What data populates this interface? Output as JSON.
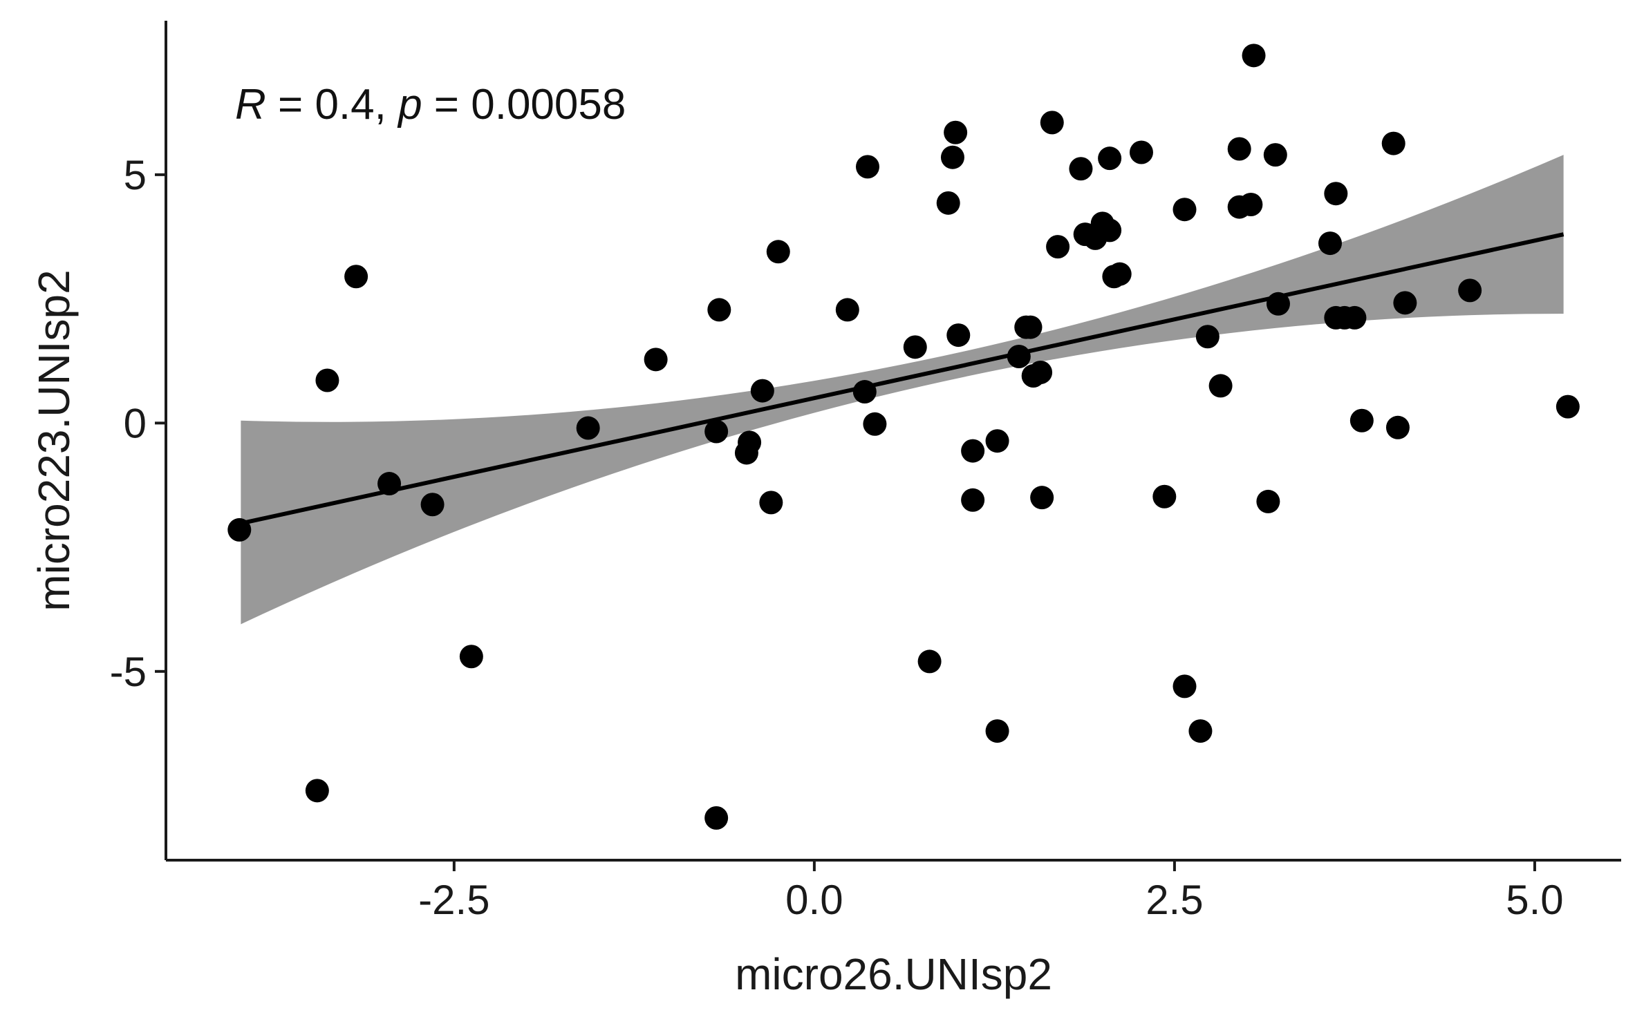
{
  "chart_data": {
    "type": "scatter",
    "xlabel": "micro26.UNIsp2",
    "ylabel": "micro223.UNIsp2",
    "xlim": [
      -4.5,
      5.6
    ],
    "ylim": [
      -8.8,
      8.1
    ],
    "xticks": [
      -2.5,
      0.0,
      2.5,
      5.0
    ],
    "xtick_labels": [
      "-2.5",
      "0.0",
      "2.5",
      "5.0"
    ],
    "yticks": [
      -5,
      0,
      5
    ],
    "ytick_labels": [
      "-5",
      "0",
      "5"
    ],
    "grid": false,
    "legend": "none",
    "annotation": {
      "r_label": "R",
      "r_text": " = 0.4, ",
      "p_label": "p",
      "p_text": " = 0.00058"
    },
    "regression": {
      "x_range": [
        -3.98,
        5.2
      ],
      "y_start": -2.02,
      "y_end": 3.8,
      "ci_lower_start": -4.05,
      "ci_upper_start": 0.05,
      "ci_lower_end": 2.2,
      "ci_upper_end": 5.4,
      "ci_lower_mid": 0.65,
      "ci_upper_mid": 1.18
    },
    "points": [
      [
        -3.99,
        -2.15
      ],
      [
        -3.38,
        0.86
      ],
      [
        -3.18,
        2.95
      ],
      [
        -2.95,
        -1.22
      ],
      [
        -2.65,
        -1.64
      ],
      [
        -2.38,
        -4.7
      ],
      [
        -3.45,
        -7.4
      ],
      [
        -1.57,
        -0.1
      ],
      [
        -1.1,
        1.28
      ],
      [
        -0.66,
        2.28
      ],
      [
        -0.68,
        -0.17
      ],
      [
        -0.45,
        -0.39
      ],
      [
        -0.47,
        -0.6
      ],
      [
        -0.36,
        0.65
      ],
      [
        -0.3,
        -1.6
      ],
      [
        -0.25,
        3.45
      ],
      [
        -0.68,
        -7.95
      ],
      [
        0.23,
        2.28
      ],
      [
        0.35,
        0.63
      ],
      [
        0.37,
        5.16
      ],
      [
        0.42,
        -0.02
      ],
      [
        0.7,
        1.53
      ],
      [
        0.8,
        -4.8
      ],
      [
        0.93,
        4.43
      ],
      [
        0.96,
        5.35
      ],
      [
        0.98,
        5.85
      ],
      [
        1.0,
        1.77
      ],
      [
        1.1,
        -0.56
      ],
      [
        1.1,
        -1.55
      ],
      [
        1.27,
        -0.36
      ],
      [
        1.27,
        -6.2
      ],
      [
        1.42,
        1.34
      ],
      [
        1.47,
        1.93
      ],
      [
        1.5,
        1.93
      ],
      [
        1.52,
        0.95
      ],
      [
        1.57,
        1.02
      ],
      [
        1.58,
        -1.5
      ],
      [
        1.65,
        6.05
      ],
      [
        1.69,
        3.55
      ],
      [
        1.85,
        5.12
      ],
      [
        1.88,
        3.8
      ],
      [
        1.95,
        3.72
      ],
      [
        2.0,
        4.02
      ],
      [
        2.05,
        3.88
      ],
      [
        2.05,
        5.33
      ],
      [
        2.08,
        2.95
      ],
      [
        2.12,
        3.0
      ],
      [
        2.27,
        5.45
      ],
      [
        2.43,
        -1.48
      ],
      [
        2.57,
        4.3
      ],
      [
        2.57,
        -5.3
      ],
      [
        2.68,
        -6.2
      ],
      [
        2.73,
        1.74
      ],
      [
        2.82,
        0.75
      ],
      [
        2.95,
        4.35
      ],
      [
        2.95,
        5.52
      ],
      [
        3.03,
        4.4
      ],
      [
        3.05,
        7.4
      ],
      [
        3.15,
        -1.58
      ],
      [
        3.2,
        5.4
      ],
      [
        3.22,
        2.4
      ],
      [
        3.58,
        3.62
      ],
      [
        3.62,
        4.62
      ],
      [
        3.62,
        2.12
      ],
      [
        3.68,
        2.12
      ],
      [
        3.75,
        2.12
      ],
      [
        3.8,
        0.05
      ],
      [
        4.02,
        5.63
      ],
      [
        4.05,
        -0.09
      ],
      [
        4.1,
        2.42
      ],
      [
        4.55,
        2.67
      ],
      [
        5.23,
        0.33
      ]
    ]
  }
}
